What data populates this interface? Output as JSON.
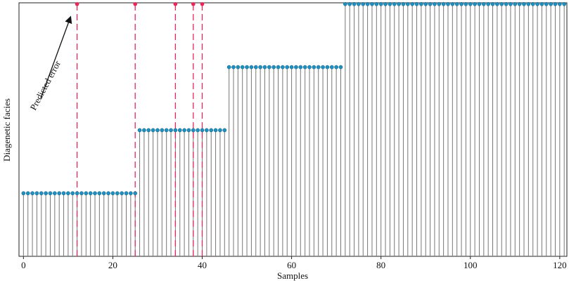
{
  "chart_data": {
    "type": "stem",
    "xlabel": "Samples",
    "ylabel": "Diagenetic facies",
    "annotation": "Predicted error",
    "x": [
      0,
      1,
      2,
      3,
      4,
      5,
      6,
      7,
      8,
      9,
      10,
      11,
      12,
      13,
      14,
      15,
      16,
      17,
      18,
      19,
      20,
      21,
      22,
      23,
      24,
      25,
      26,
      27,
      28,
      29,
      30,
      31,
      32,
      33,
      34,
      35,
      36,
      37,
      38,
      39,
      40,
      41,
      42,
      43,
      44,
      45,
      46,
      47,
      48,
      49,
      50,
      51,
      52,
      53,
      54,
      55,
      56,
      57,
      58,
      59,
      60,
      61,
      62,
      63,
      64,
      65,
      66,
      67,
      68,
      69,
      70,
      71,
      72,
      73,
      74,
      75,
      76,
      77,
      78,
      79,
      80,
      81,
      82,
      83,
      84,
      85,
      86,
      87,
      88,
      89,
      90,
      91,
      92,
      93,
      94,
      95,
      96,
      97,
      98,
      99,
      100,
      101,
      102,
      103,
      104,
      105,
      106,
      107,
      108,
      109,
      110,
      111,
      112,
      113,
      114,
      115,
      116,
      117,
      118,
      119,
      120,
      121
    ],
    "values": [
      1,
      1,
      1,
      1,
      1,
      1,
      1,
      1,
      1,
      1,
      1,
      1,
      1,
      1,
      1,
      1,
      1,
      1,
      1,
      1,
      1,
      1,
      1,
      1,
      1,
      1,
      2,
      2,
      2,
      2,
      2,
      2,
      2,
      2,
      2,
      2,
      2,
      2,
      2,
      2,
      2,
      2,
      2,
      2,
      2,
      2,
      3,
      3,
      3,
      3,
      3,
      3,
      3,
      3,
      3,
      3,
      3,
      3,
      3,
      3,
      3,
      3,
      3,
      3,
      3,
      3,
      3,
      3,
      3,
      3,
      3,
      3,
      4,
      4,
      4,
      4,
      4,
      4,
      4,
      4,
      4,
      4,
      4,
      4,
      4,
      4,
      4,
      4,
      4,
      4,
      4,
      4,
      4,
      4,
      4,
      4,
      4,
      4,
      4,
      4,
      4,
      4,
      4,
      4,
      4,
      4,
      4,
      4,
      4,
      4,
      4,
      4,
      4,
      4,
      4,
      4,
      4,
      4,
      4,
      4,
      4,
      4
    ],
    "color": "#1f8fbf",
    "stem_color": "#777777",
    "errors": {
      "x": [
        12,
        25,
        34,
        38,
        40
      ],
      "values": [
        4,
        4,
        4,
        4,
        4
      ],
      "color": "#e8265a"
    },
    "xlim": [
      -1,
      121.6
    ],
    "ylim": [
      0,
      4.02
    ],
    "xticks": [
      0,
      20,
      40,
      60,
      80,
      100,
      120
    ]
  }
}
